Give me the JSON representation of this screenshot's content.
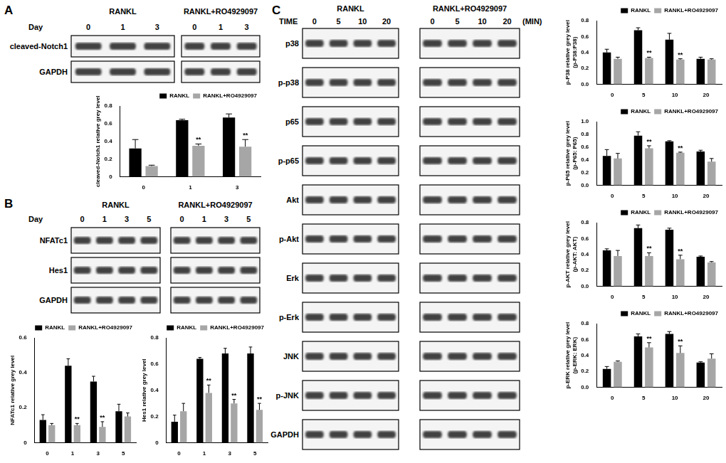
{
  "figure": {
    "panels": [
      {
        "letter": "A",
        "groups": [
          "RANKL",
          "RANKL+RO4929097"
        ],
        "lane_axis": "Day",
        "lanes": [
          "0",
          "1",
          "3"
        ],
        "blots": [
          "cleaved-Notch1",
          "GAPDH"
        ]
      },
      {
        "letter": "B",
        "groups": [
          "RANKL",
          "RANKL+RO4929097"
        ],
        "lane_axis": "Day",
        "lanes": [
          "0",
          "1",
          "3",
          "5"
        ],
        "blots": [
          "NFATc1",
          "Hes1",
          "GAPDH"
        ]
      },
      {
        "letter": "C",
        "groups": [
          "RANKL",
          "RANKL+RO4929097"
        ],
        "lane_axis": "TIME",
        "lanes": [
          "0",
          "5",
          "10",
          "20"
        ],
        "lane_unit": "(MIN)",
        "blots": [
          "p38",
          "p-p38",
          "p65",
          "p-p65",
          "Akt",
          "p-Akt",
          "Erk",
          "p-Erk",
          "JNK",
          "p-JNK",
          "GAPDH"
        ]
      }
    ]
  },
  "chart_data": [
    {
      "type": "bar",
      "y_label": "cleaved-Notch1 relative grey level",
      "categories": [
        "0",
        "1",
        "3"
      ],
      "series": [
        {
          "name": "RANKL",
          "color": "#000000",
          "values": [
            0.32,
            0.64,
            0.67
          ],
          "errors": [
            0.1,
            0.01,
            0.04
          ]
        },
        {
          "name": "RANKL+RO4929097",
          "color": "#a6a6a6",
          "values": [
            0.12,
            0.35,
            0.34
          ],
          "errors": [
            0.01,
            0.02,
            0.08
          ],
          "annotations": [
            null,
            "**",
            "**"
          ]
        }
      ],
      "ylim": [
        0,
        0.8
      ],
      "yticks": [
        0,
        0.2,
        0.4,
        0.6,
        0.8
      ],
      "grid": false,
      "legend": "upper right"
    },
    {
      "type": "bar",
      "y_label": "NFATc1 relative grey level",
      "categories": [
        "0",
        "1",
        "3",
        "5"
      ],
      "series": [
        {
          "name": "RANKL",
          "color": "#000000",
          "values": [
            0.13,
            0.44,
            0.35,
            0.18
          ],
          "errors": [
            0.03,
            0.04,
            0.03,
            0.04
          ]
        },
        {
          "name": "RANKL+RO4929097",
          "color": "#a6a6a6",
          "values": [
            0.1,
            0.1,
            0.09,
            0.15
          ],
          "errors": [
            0.01,
            0.01,
            0.03,
            0.02
          ],
          "annotations": [
            null,
            "**",
            "**",
            null
          ]
        }
      ],
      "ylim": [
        0,
        0.6
      ],
      "yticks": [
        0,
        0.2,
        0.4,
        0.6
      ],
      "grid": false,
      "legend": "upper right"
    },
    {
      "type": "bar",
      "y_label": "Hes1 relative grey level",
      "categories": [
        "0",
        "1",
        "3",
        "5"
      ],
      "series": [
        {
          "name": "RANKL",
          "color": "#000000",
          "values": [
            0.16,
            0.64,
            0.68,
            0.68
          ],
          "errors": [
            0.05,
            0.01,
            0.04,
            0.05
          ]
        },
        {
          "name": "RANKL+RO4929097",
          "color": "#a6a6a6",
          "values": [
            0.24,
            0.38,
            0.3,
            0.25
          ],
          "errors": [
            0.06,
            0.06,
            0.03,
            0.05
          ],
          "annotations": [
            null,
            "**",
            "**",
            "**"
          ]
        }
      ],
      "ylim": [
        0,
        0.8
      ],
      "yticks": [
        0,
        0.2,
        0.4,
        0.6,
        0.8
      ],
      "grid": false,
      "legend": "upper right"
    },
    {
      "type": "bar",
      "y_label": [
        "p-P38 relative grey level",
        "(p-P38:P38)"
      ],
      "categories": [
        "0",
        "5",
        "10",
        "20"
      ],
      "series": [
        {
          "name": "RANKL",
          "color": "#000000",
          "values": [
            0.4,
            0.68,
            0.56,
            0.32
          ],
          "errors": [
            0.04,
            0.03,
            0.08,
            0.02
          ]
        },
        {
          "name": "RANKL+RO4929097",
          "color": "#a6a6a6",
          "values": [
            0.32,
            0.33,
            0.31,
            0.31
          ],
          "errors": [
            0.02,
            0.01,
            0.01,
            0.01
          ],
          "annotations": [
            null,
            "**",
            "**",
            null
          ]
        }
      ],
      "ylim": [
        0,
        0.8
      ],
      "yticks": [
        {
          "value": 0,
          "label": "0.0"
        },
        0.2,
        0.4,
        0.6,
        0.8
      ],
      "grid": false,
      "legend": "upper right"
    },
    {
      "type": "bar",
      "y_label": [
        "p-P65 relative grey level",
        "(p-P65: P65)"
      ],
      "categories": [
        "0",
        "5",
        "10",
        "20"
      ],
      "series": [
        {
          "name": "RANKL",
          "color": "#000000",
          "values": [
            0.46,
            0.78,
            0.69,
            0.53
          ],
          "errors": [
            0.1,
            0.06,
            0.01,
            0.02
          ]
        },
        {
          "name": "RANKL+RO4929097",
          "color": "#a6a6a6",
          "values": [
            0.42,
            0.58,
            0.51,
            0.37
          ],
          "errors": [
            0.08,
            0.04,
            0.01,
            0.05
          ],
          "annotations": [
            null,
            "**",
            "**",
            null
          ]
        }
      ],
      "ylim": [
        0,
        1.0
      ],
      "yticks": [
        {
          "value": 0,
          "label": "0.0"
        },
        0.2,
        0.4,
        0.6,
        0.8,
        {
          "value": 1.0,
          "label": "1.0"
        }
      ],
      "grid": false,
      "legend": "upper right"
    },
    {
      "type": "bar",
      "y_label": [
        "p-AKT relative grey level",
        "(p-AKT: AKT)"
      ],
      "categories": [
        "0",
        "5",
        "10",
        "20"
      ],
      "series": [
        {
          "name": "RANKL",
          "color": "#000000",
          "values": [
            0.45,
            0.73,
            0.71,
            0.37
          ],
          "errors": [
            0.02,
            0.04,
            0.02,
            0.01
          ]
        },
        {
          "name": "RANKL+RO4929097",
          "color": "#a6a6a6",
          "values": [
            0.38,
            0.38,
            0.34,
            0.3
          ],
          "errors": [
            0.07,
            0.04,
            0.05,
            0.01
          ],
          "annotations": [
            null,
            "**",
            "**",
            null
          ]
        }
      ],
      "ylim": [
        0,
        0.8
      ],
      "yticks": [
        {
          "value": 0,
          "label": "0.0"
        },
        0.2,
        0.4,
        0.6,
        0.8
      ],
      "grid": false,
      "legend": "upper right"
    },
    {
      "type": "bar",
      "y_label": [
        "p-ERK relative grey level",
        "(p-ERK: ERK)"
      ],
      "categories": [
        "0",
        "5",
        "10",
        "20"
      ],
      "series": [
        {
          "name": "RANKL",
          "color": "#000000",
          "values": [
            0.23,
            0.64,
            0.67,
            0.31
          ],
          "errors": [
            0.03,
            0.03,
            0.03,
            0.01
          ]
        },
        {
          "name": "RANKL+RO4929097",
          "color": "#a6a6a6",
          "values": [
            0.32,
            0.5,
            0.43,
            0.36
          ],
          "errors": [
            0.01,
            0.06,
            0.09,
            0.06
          ],
          "annotations": [
            null,
            "**",
            "**",
            null
          ]
        }
      ],
      "ylim": [
        0,
        0.8
      ],
      "yticks": [
        {
          "value": 0,
          "label": "0.0"
        },
        0.2,
        0.4,
        0.6,
        0.8
      ],
      "grid": false,
      "legend": "upper right"
    }
  ]
}
